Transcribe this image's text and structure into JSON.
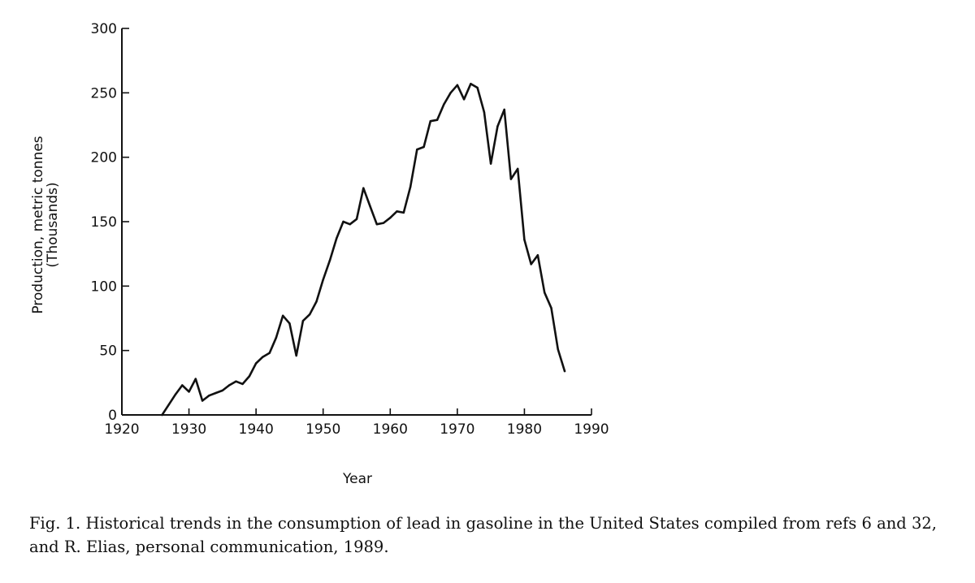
{
  "chart_data": {
    "type": "line",
    "title": "",
    "xlabel": "Year",
    "ylabel": "Production, metric tonnes",
    "ylabel_sub": "(Thousands)",
    "xlim": [
      1920,
      1990
    ],
    "ylim": [
      0,
      300
    ],
    "x_ticks": [
      1920,
      1930,
      1940,
      1950,
      1960,
      1970,
      1980,
      1990
    ],
    "y_ticks": [
      0,
      50,
      100,
      150,
      200,
      250,
      300
    ],
    "grid": false,
    "series": [
      {
        "name": "Lead in gasoline",
        "x": [
          1926,
          1927,
          1928,
          1929,
          1930,
          1931,
          1932,
          1933,
          1934,
          1935,
          1936,
          1937,
          1938,
          1939,
          1940,
          1941,
          1942,
          1943,
          1944,
          1945,
          1946,
          1947,
          1948,
          1949,
          1950,
          1951,
          1952,
          1953,
          1954,
          1955,
          1956,
          1957,
          1958,
          1959,
          1960,
          1961,
          1962,
          1963,
          1964,
          1965,
          1966,
          1967,
          1968,
          1969,
          1970,
          1971,
          1972,
          1973,
          1974,
          1975,
          1976,
          1977,
          1978,
          1979,
          1980,
          1981,
          1982,
          1983,
          1984,
          1985,
          1986
        ],
        "values": [
          0,
          8,
          16,
          23,
          18,
          28,
          11,
          15,
          17,
          19,
          23,
          26,
          24,
          30,
          40,
          45,
          48,
          60,
          77,
          71,
          46,
          73,
          78,
          88,
          105,
          120,
          137,
          150,
          148,
          152,
          176,
          162,
          148,
          149,
          153,
          158,
          157,
          177,
          206,
          208,
          228,
          229,
          241,
          250,
          256,
          245,
          257,
          254,
          235,
          195,
          224,
          237,
          183,
          191,
          136,
          117,
          124,
          95,
          83,
          51,
          34
        ]
      }
    ]
  },
  "caption": {
    "text": "Fig. 1. Historical trends in the consumption of lead in gasoline in the United States compiled from refs 6 and 32, and R. Elias, personal communication, 1989."
  }
}
